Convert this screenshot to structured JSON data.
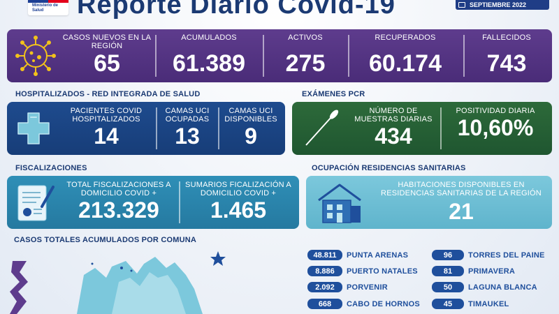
{
  "header": {
    "logo_text": "Ministerio de Salud",
    "title": "Reporte Diario Covid-19",
    "date": "SEPTIEMBRE 2022"
  },
  "summary": {
    "icon": "virus-icon",
    "casos_nuevos_label": "CASOS NUEVOS EN LA REGIÓN",
    "casos_nuevos_value": "65",
    "acumulados_label": "ACUMULADOS",
    "acumulados_value": "61.389",
    "activos_label": "ACTIVOS",
    "activos_value": "275",
    "recuperados_label": "RECUPERADOS",
    "recuperados_value": "60.174",
    "fallecidos_label": "FALLECIDOS",
    "fallecidos_value": "743"
  },
  "hospital": {
    "section_title": "HOSPITALIZADOS - RED INTEGRADA DE SALUD",
    "icon": "medical-cross-icon",
    "pacientes_label": "PACIENTES COVID HOSPITALIZADOS",
    "pacientes_value": "14",
    "uci_ocupadas_label": "CAMAS UCI OCUPADAS",
    "uci_ocupadas_value": "13",
    "uci_disponibles_label": "CAMAS UCI DISPONIBLES",
    "uci_disponibles_value": "9"
  },
  "pcr": {
    "section_title": "EXÁMENES PCR",
    "icon": "swab-icon",
    "muestras_label": "NÚMERO DE MUESTRAS DIARIAS",
    "muestras_value": "434",
    "positividad_label": "POSITIVIDAD DIARIA",
    "positividad_value": "10,60%"
  },
  "fiscalizaciones": {
    "section_title": "FISCALIZACIONES",
    "icon": "document-icon",
    "total_label": "TOTAL FISCALIZACIONES A DOMICILIO COVID +",
    "total_value": "213.329",
    "sumarios_label": "SUMARIOS FICALIZACIÓN A DOMICILIO COVID +",
    "sumarios_value": "1.465"
  },
  "residencias": {
    "section_title": "OCUPACIÓN RESIDENCIAS SANITARIAS",
    "icon": "house-icon",
    "habitaciones_label": "HABITACIONES DISPONIBLES EN RESIDENCIAS SANITARIAS DE LA REGIÓN",
    "habitaciones_value": "21"
  },
  "comunas": {
    "section_title": "CASOS TOTALES ACUMULADOS POR COMUNA",
    "illustration": "mountains-illustration",
    "left": [
      {
        "value": "48.811",
        "name": "PUNTA ARENAS"
      },
      {
        "value": "8.886",
        "name": "PUERTO NATALES"
      },
      {
        "value": "2.092",
        "name": "PORVENIR"
      },
      {
        "value": "668",
        "name": "CABO DE HORNOS"
      }
    ],
    "right": [
      {
        "value": "96",
        "name": "TORRES DEL PAINE"
      },
      {
        "value": "81",
        "name": "PRIMAVERA"
      },
      {
        "value": "50",
        "name": "LAGUNA BLANCA"
      },
      {
        "value": "45",
        "name": "TIMAUKEL"
      }
    ]
  },
  "colors": {
    "purple": "#5e3c8d",
    "navy": "#1e4b8e",
    "green": "#2d6a3a",
    "teal": "#2f8fb7",
    "light_teal": "#7cc8dc",
    "title_blue": "#1b3a73"
  }
}
